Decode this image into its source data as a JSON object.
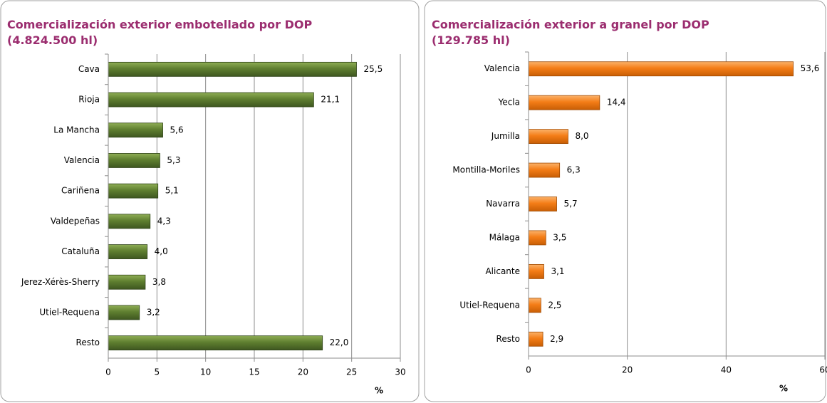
{
  "chart_data": [
    {
      "type": "bar",
      "orientation": "horizontal",
      "title": "Comercialización exterior embotellado por DOP",
      "subtitle": "(4.824.500 hl)",
      "categories": [
        "Cava",
        "Rioja",
        "La Mancha",
        "Valencia",
        "Cariñena",
        "Valdepeñas",
        "Cataluña",
        "Jerez-Xérès-Sherry",
        "Utiel-Requena",
        "Resto"
      ],
      "values": [
        25.5,
        21.1,
        5.6,
        5.3,
        5.1,
        4.3,
        4.0,
        3.8,
        3.2,
        22.0
      ],
      "value_labels": [
        "25,5",
        "21,1",
        "5,6",
        "5,3",
        "5,1",
        "4,3",
        "4,0",
        "3,8",
        "3,2",
        "22,0"
      ],
      "color": "green",
      "xlabel": "%",
      "xlim": [
        0,
        30
      ],
      "xticks": [
        0,
        5,
        10,
        15,
        20,
        25,
        30
      ],
      "grid": true
    },
    {
      "type": "bar",
      "orientation": "horizontal",
      "title": "Comercialización exterior a granel por DOP",
      "subtitle": "(129.785 hl)",
      "categories": [
        "Valencia",
        "Yecla",
        "Jumilla",
        "Montilla-Moriles",
        "Navarra",
        "Málaga",
        "Alicante",
        "Utiel-Requena",
        "Resto"
      ],
      "values": [
        53.6,
        14.4,
        8.0,
        6.3,
        5.7,
        3.5,
        3.1,
        2.5,
        2.9
      ],
      "value_labels": [
        "53,6",
        "14,4",
        "8,0",
        "6,3",
        "5,7",
        "3,5",
        "3,1",
        "2,5",
        "2,9"
      ],
      "color": "orange",
      "xlabel": "%",
      "xlim": [
        0,
        60
      ],
      "xticks": [
        0,
        20,
        40,
        60
      ],
      "grid": true
    }
  ]
}
